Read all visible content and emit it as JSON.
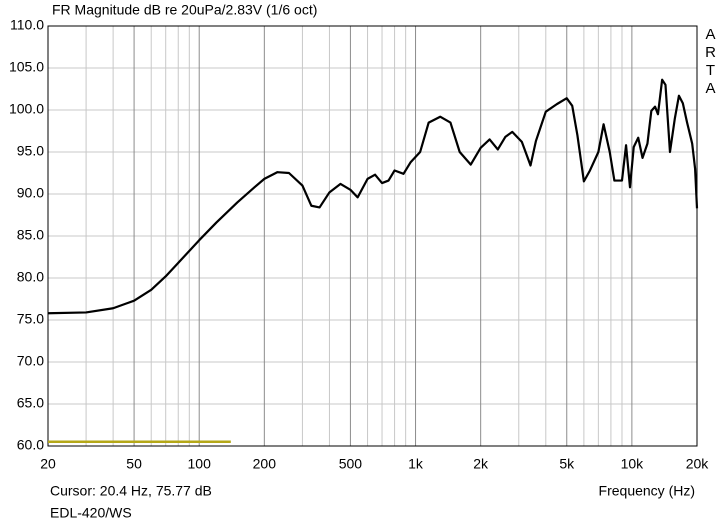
{
  "chart_data": {
    "type": "line",
    "title": "FR Magnitude dB re 20uPa/2.83V (1/6 oct)",
    "side_label": "ARTA",
    "cursor_text": "Cursor: 20.4 Hz, 75.77 dB",
    "xlabel": "Frequency (Hz)",
    "footer": "EDL-420/WS",
    "log_x": true,
    "grid": true,
    "color": "#000000",
    "x": [
      20,
      30,
      40,
      50,
      60,
      70,
      80,
      100,
      120,
      150,
      180,
      200,
      230,
      260,
      300,
      330,
      360,
      400,
      450,
      500,
      540,
      600,
      650,
      700,
      750,
      800,
      880,
      950,
      1050,
      1150,
      1300,
      1450,
      1600,
      1800,
      2000,
      2200,
      2400,
      2600,
      2800,
      3100,
      3400,
      3600,
      4000,
      4500,
      5000,
      5300,
      5600,
      6000,
      6400,
      7000,
      7400,
      7900,
      8300,
      9000,
      9400,
      9800,
      10200,
      10700,
      11200,
      11800,
      12300,
      12800,
      13200,
      13800,
      14300,
      15000,
      15800,
      16500,
      17200,
      18000,
      19000,
      19600,
      20000
    ],
    "values": [
      75.8,
      75.9,
      76.4,
      77.3,
      78.6,
      80.2,
      81.8,
      84.5,
      86.6,
      89,
      90.8,
      91.8,
      92.6,
      92.5,
      91,
      88.6,
      88.4,
      90.2,
      91.2,
      90.5,
      89.6,
      91.8,
      92.3,
      91.3,
      91.6,
      92.8,
      92.4,
      93.8,
      95,
      98.5,
      99.2,
      98.5,
      95,
      93.5,
      95.5,
      96.5,
      95.3,
      96.8,
      97.4,
      96.2,
      93.4,
      96.3,
      99.8,
      100.7,
      101.4,
      100.5,
      97,
      91.5,
      92.8,
      95,
      98.3,
      95,
      91.6,
      91.6,
      95.8,
      90.8,
      95.6,
      96.7,
      94.3,
      96,
      99.9,
      100.4,
      99.5,
      103.6,
      103,
      95,
      99,
      101.7,
      100.8,
      98.5,
      96,
      93,
      88.3
    ],
    "band": {
      "x": [
        20,
        140
      ],
      "y": 60.5,
      "color": "#b5a818"
    },
    "xlim": [
      20,
      20000
    ],
    "xticks": [
      20,
      50,
      100,
      200,
      500,
      {
        "value": 1000,
        "label": "1k"
      },
      {
        "value": 2000,
        "label": "2k"
      },
      {
        "value": 5000,
        "label": "5k"
      },
      {
        "value": 10000,
        "label": "10k"
      },
      {
        "value": 20000,
        "label": "20k"
      }
    ],
    "minor_xticks": [
      30,
      40,
      60,
      70,
      80,
      90,
      300,
      400,
      600,
      700,
      800,
      900,
      3000,
      4000,
      6000,
      7000,
      8000,
      9000
    ],
    "ylim": [
      60,
      110
    ],
    "yticks": [
      {
        "value": 60,
        "label": "60.0"
      },
      {
        "value": 65,
        "label": "65.0"
      },
      {
        "value": 70,
        "label": "70.0"
      },
      {
        "value": 75,
        "label": "75.0"
      },
      {
        "value": 80,
        "label": "80.0"
      },
      {
        "value": 85,
        "label": "85.0"
      },
      {
        "value": 90,
        "label": "90.0"
      },
      {
        "value": 95,
        "label": "95.0"
      },
      {
        "value": 100,
        "label": "100.0"
      },
      {
        "value": 105,
        "label": "105.0"
      },
      {
        "value": 110,
        "label": "110.0"
      }
    ]
  }
}
